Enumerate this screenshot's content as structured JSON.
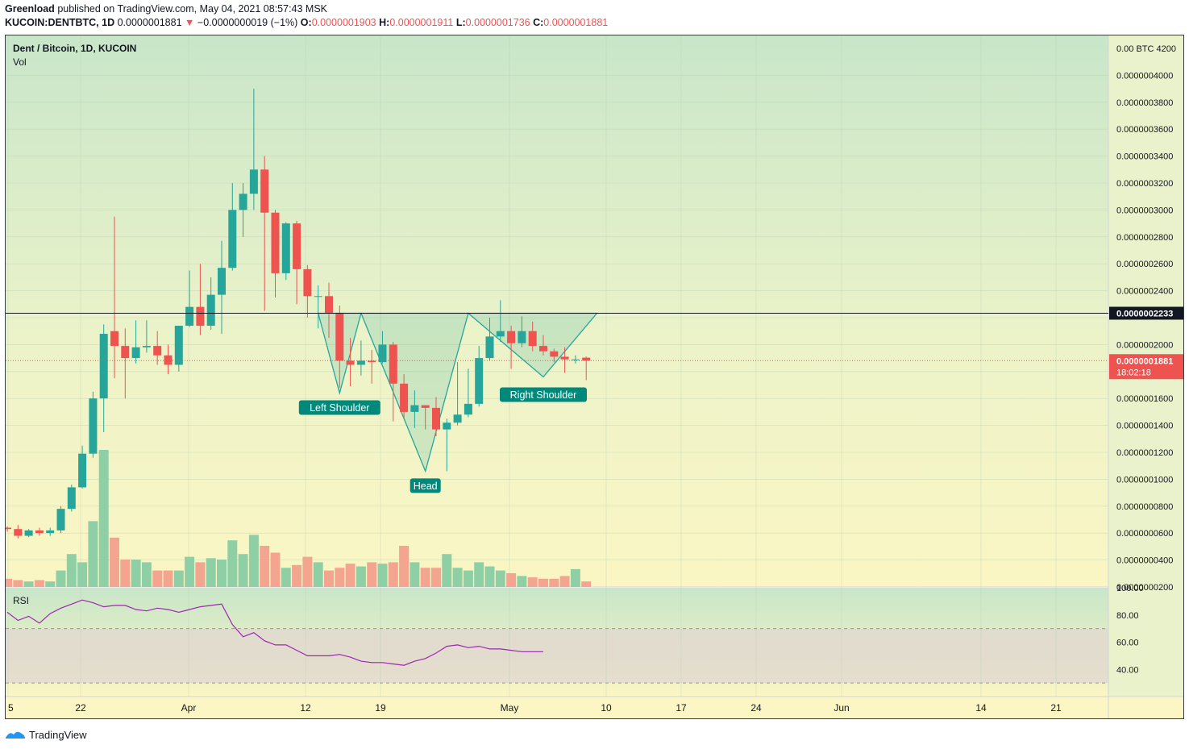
{
  "header": {
    "author": "Greenload",
    "published_text": "published on TradingView.com, May 04, 2021 08:57:43 MSK",
    "symbol": "KUCOIN:DENTBTC, 1D",
    "last": "0.0000001881",
    "change_arrow": "▼",
    "change": "−0.0000000019 (−1%)",
    "o_label": "O:",
    "o_value": "0.0000001903",
    "h_label": "H:",
    "h_value": "0.0000001911",
    "l_label": "L:",
    "l_value": "0.0000001736",
    "c_label": "C:",
    "c_value": "0.0000001881"
  },
  "panes": {
    "main_title": "Dent / Bitcoin, 1D, KUCOIN",
    "vol_label": "Vol",
    "rsi_label": "RSI"
  },
  "footer": {
    "brand": "TradingView",
    "icon": "tradingview-logo-icon"
  },
  "colors": {
    "up": "#26a69a",
    "down": "#ef5350",
    "vol_up": "#8fcfa6",
    "vol_down": "#f4a590",
    "rsi": "#9c27b0",
    "pattern": "#26a69a"
  },
  "chart_data": {
    "type": "candlestick",
    "price_axis": {
      "unit": "BTC",
      "labels": [
        "0.00 BTC 4200",
        "0.0000004000",
        "0.0000003800",
        "0.0000003600",
        "0.0000003400",
        "0.0000003200",
        "0.0000003000",
        "0.0000002800",
        "0.0000002600",
        "0.0000002400",
        "0.0000002000",
        "0.0000001600",
        "0.0000001400",
        "0.0000001200",
        "0.0000001000",
        "0.0000000800",
        "0.0000000600",
        "0.0000000400",
        "0.0000000200"
      ],
      "ylim": [
        2e-08,
        4.2e-07
      ]
    },
    "time_axis": {
      "labels": [
        "5",
        "22",
        "Apr",
        "12",
        "19",
        "May",
        "10",
        "17",
        "24",
        "Jun",
        "14",
        "21"
      ]
    },
    "horizontal_line": {
      "value": 2.233e-07,
      "label": "0.0000002233"
    },
    "last_price": {
      "value": 1.881e-07,
      "label": "0.0000001881",
      "countdown": "18:02:18"
    },
    "candles": [
      [
        6.4e-08,
        6.5e-08,
        6.1e-08,
        6.3e-08
      ],
      [
        6.3e-08,
        6.6e-08,
        5.6e-08,
        5.8e-08
      ],
      [
        5.8e-08,
        6.3e-08,
        5.7e-08,
        6.2e-08
      ],
      [
        6.2e-08,
        6.4e-08,
        5.8e-08,
        6e-08
      ],
      [
        6e-08,
        6.4e-08,
        5.8e-08,
        6.2e-08
      ],
      [
        6.2e-08,
        8e-08,
        6e-08,
        7.8e-08
      ],
      [
        7.8e-08,
        9.6e-08,
        7.6e-08,
        9.4e-08
      ],
      [
        9.4e-08,
        1.25e-07,
        9.3e-08,
        1.19e-07
      ],
      [
        1.19e-07,
        1.65e-07,
        1.16e-07,
        1.6e-07
      ],
      [
        1.6e-07,
        2.15e-07,
        1.35e-07,
        2.08e-07
      ],
      [
        2.1e-07,
        2.95e-07,
        1.75e-07,
        1.99e-07
      ],
      [
        1.99e-07,
        2.12e-07,
        1.6e-07,
        1.9e-07
      ],
      [
        1.9e-07,
        2.18e-07,
        1.86e-07,
        1.98e-07
      ],
      [
        1.98e-07,
        2.18e-07,
        1.94e-07,
        1.99e-07
      ],
      [
        1.99e-07,
        2.1e-07,
        1.85e-07,
        1.92e-07
      ],
      [
        1.92e-07,
        2e-07,
        1.78e-07,
        1.85e-07
      ],
      [
        1.85e-07,
        2.13e-07,
        1.8e-07,
        2.14e-07
      ],
      [
        2.14e-07,
        2.55e-07,
        2.13e-07,
        2.28e-07
      ],
      [
        2.28e-07,
        2.6e-07,
        2.07e-07,
        2.14e-07
      ],
      [
        2.14e-07,
        2.5e-07,
        2.11e-07,
        2.37e-07
      ],
      [
        2.37e-07,
        2.77e-07,
        2.08e-07,
        2.57e-07
      ],
      [
        2.57e-07,
        3.2e-07,
        2.55e-07,
        3e-07
      ],
      [
        3e-07,
        3.2e-07,
        2.8e-07,
        3.12e-07
      ],
      [
        3.12e-07,
        3.9e-07,
        3e-07,
        3.3e-07
      ],
      [
        3.3e-07,
        3.4e-07,
        2.25e-07,
        2.98e-07
      ],
      [
        2.98e-07,
        3e-07,
        2.35e-07,
        2.53e-07
      ],
      [
        2.53e-07,
        2.91e-07,
        2.48e-07,
        2.9e-07
      ],
      [
        2.9e-07,
        2.92e-07,
        2.3e-07,
        2.56e-07
      ],
      [
        2.56e-07,
        2.59e-07,
        2.2e-07,
        2.36e-07
      ],
      [
        2.36e-07,
        2.44e-07,
        2.12e-07,
        2.36e-07
      ],
      [
        2.36e-07,
        2.46e-07,
        2.05e-07,
        2.23e-07
      ],
      [
        2.23e-07,
        2.29e-07,
        1.68e-07,
        1.88e-07
      ],
      [
        1.88e-07,
        2.05e-07,
        1.69e-07,
        1.85e-07
      ],
      [
        1.85e-07,
        2.03e-07,
        1.77e-07,
        1.88e-07
      ],
      [
        1.88e-07,
        1.96e-07,
        1.71e-07,
        1.87e-07
      ],
      [
        1.87e-07,
        2.1e-07,
        1.86e-07,
        2e-07
      ],
      [
        2e-07,
        2.02e-07,
        1.43e-07,
        1.71e-07
      ],
      [
        1.71e-07,
        1.78e-07,
        1.45e-07,
        1.5e-07
      ],
      [
        1.5e-07,
        1.66e-07,
        1.38e-07,
        1.55e-07
      ],
      [
        1.55e-07,
        1.55e-07,
        1.37e-07,
        1.53e-07
      ],
      [
        1.53e-07,
        1.61e-07,
        1.32e-07,
        1.37e-07
      ],
      [
        1.37e-07,
        1.45e-07,
        1.06e-07,
        1.42e-07
      ],
      [
        1.42e-07,
        1.87e-07,
        1.4e-07,
        1.48e-07
      ],
      [
        1.48e-07,
        1.82e-07,
        1.46e-07,
        1.56e-07
      ],
      [
        1.56e-07,
        1.99e-07,
        1.54e-07,
        1.9e-07
      ],
      [
        1.9e-07,
        2.2e-07,
        1.88e-07,
        2.06e-07
      ],
      [
        2.06e-07,
        2.33e-07,
        2.02e-07,
        2.1e-07
      ],
      [
        2.1e-07,
        2.14e-07,
        1.82e-07,
        2.01e-07
      ],
      [
        2.01e-07,
        2.21e-07,
        1.98e-07,
        2.1e-07
      ],
      [
        2.1e-07,
        2.17e-07,
        1.95e-07,
        1.99e-07
      ],
      [
        1.99e-07,
        2.07e-07,
        1.92e-07,
        1.95e-07
      ],
      [
        1.95e-07,
        1.97e-07,
        1.87e-07,
        1.91e-07
      ],
      [
        1.91e-07,
        1.98e-07,
        1.79e-07,
        1.89e-07
      ],
      [
        1.89e-07,
        1.92e-07,
        1.86e-07,
        1.89e-07
      ],
      [
        1.903e-07,
        1.911e-07,
        1.736e-07,
        1.881e-07
      ]
    ],
    "volume_scale": [
      0,
      100
    ],
    "volume": [
      6,
      5,
      4,
      5,
      4,
      12,
      24,
      18,
      48,
      100,
      36,
      20,
      20,
      18,
      12,
      12,
      12,
      22,
      18,
      21,
      20,
      34,
      24,
      38,
      30,
      25,
      14,
      16,
      22,
      18,
      12,
      14,
      17,
      15,
      18,
      17,
      18,
      30,
      18,
      14,
      14,
      24,
      14,
      12,
      18,
      15,
      12,
      10,
      8,
      7,
      6,
      6,
      8,
      13,
      4
    ],
    "rsi": {
      "ylim": [
        20,
        100
      ],
      "labels": [
        "100.00",
        "80.00",
        "60.00",
        "40.00"
      ],
      "bands": [
        70,
        30
      ],
      "values": [
        82,
        76,
        79,
        74,
        81,
        85,
        88,
        91,
        89,
        86,
        87,
        87,
        84,
        83,
        85,
        84,
        82,
        84,
        86,
        87,
        88,
        73,
        64,
        67,
        61,
        58,
        58,
        54,
        50,
        50,
        50,
        51,
        49,
        46,
        45,
        45,
        44,
        43,
        46,
        48,
        52,
        57,
        58,
        56,
        57,
        55,
        55,
        54,
        53,
        53,
        53
      ]
    },
    "pattern": {
      "labels": [
        "Left Shoulder",
        "Head",
        "Right Shoulder"
      ],
      "points": [
        [
          29,
          2.233e-07
        ],
        [
          31,
          1.64e-07
        ],
        [
          33,
          2.233e-07
        ],
        [
          39,
          1.06e-07
        ],
        [
          43,
          2.233e-07
        ],
        [
          50,
          1.76e-07
        ],
        [
          55,
          2.233e-07
        ]
      ]
    }
  }
}
